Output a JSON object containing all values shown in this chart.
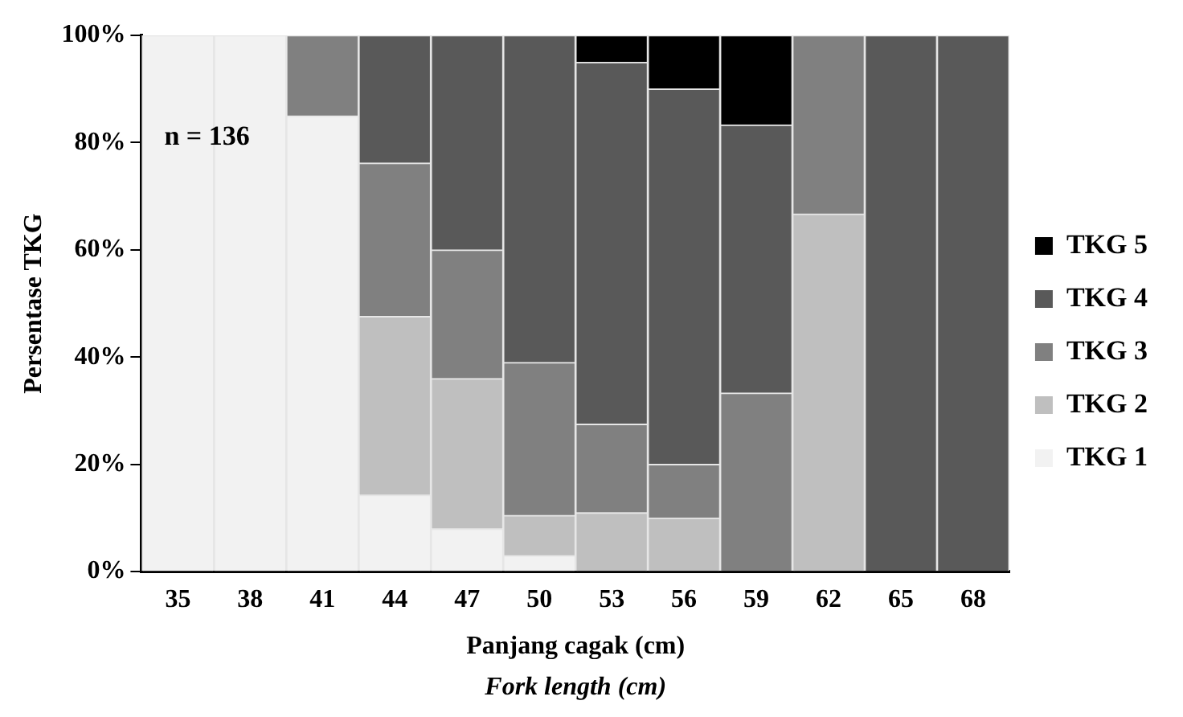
{
  "chart_data": {
    "type": "bar",
    "stacked": true,
    "xlabel": "Panjang cagak (cm)",
    "ylabel": "Persentase TKG",
    "annotations": [
      "n = 136",
      "Fork length (cm)"
    ],
    "categories": [
      "35",
      "38",
      "41",
      "44",
      "47",
      "50",
      "53",
      "56",
      "59",
      "62",
      "65",
      "68"
    ],
    "ylim": [
      0,
      100
    ],
    "yticks": [
      {
        "value": 0,
        "label": "0%"
      },
      {
        "value": 20,
        "label": "20%"
      },
      {
        "value": 40,
        "label": "40%"
      },
      {
        "value": 60,
        "label": "60%"
      },
      {
        "value": 80,
        "label": "80%"
      },
      {
        "value": 100,
        "label": "100%"
      }
    ],
    "grid": false,
    "legend": "right",
    "series": [
      {
        "name": "TKG 1",
        "color": "#f2f2f2",
        "values": [
          100,
          100,
          85,
          14.3,
          8,
          3,
          null,
          null,
          null,
          null,
          null,
          null
        ]
      },
      {
        "name": "TKG 2",
        "color": "#bfbfbf",
        "values": [
          null,
          null,
          null,
          33.3,
          28,
          7.5,
          11,
          10,
          null,
          66.7,
          null,
          null
        ]
      },
      {
        "name": "TKG 3",
        "color": "#808080",
        "values": [
          null,
          null,
          15,
          28.6,
          24,
          28.5,
          16.5,
          10,
          33.3,
          33.3,
          null,
          null
        ]
      },
      {
        "name": "TKG 4",
        "color": "#595959",
        "values": [
          null,
          null,
          null,
          23.8,
          40,
          61,
          67.5,
          70,
          50,
          null,
          100,
          100
        ]
      },
      {
        "name": "TKG 5",
        "color": "#000000",
        "values": [
          null,
          null,
          null,
          null,
          null,
          null,
          5,
          10,
          16.7,
          null,
          null,
          null
        ]
      }
    ]
  }
}
